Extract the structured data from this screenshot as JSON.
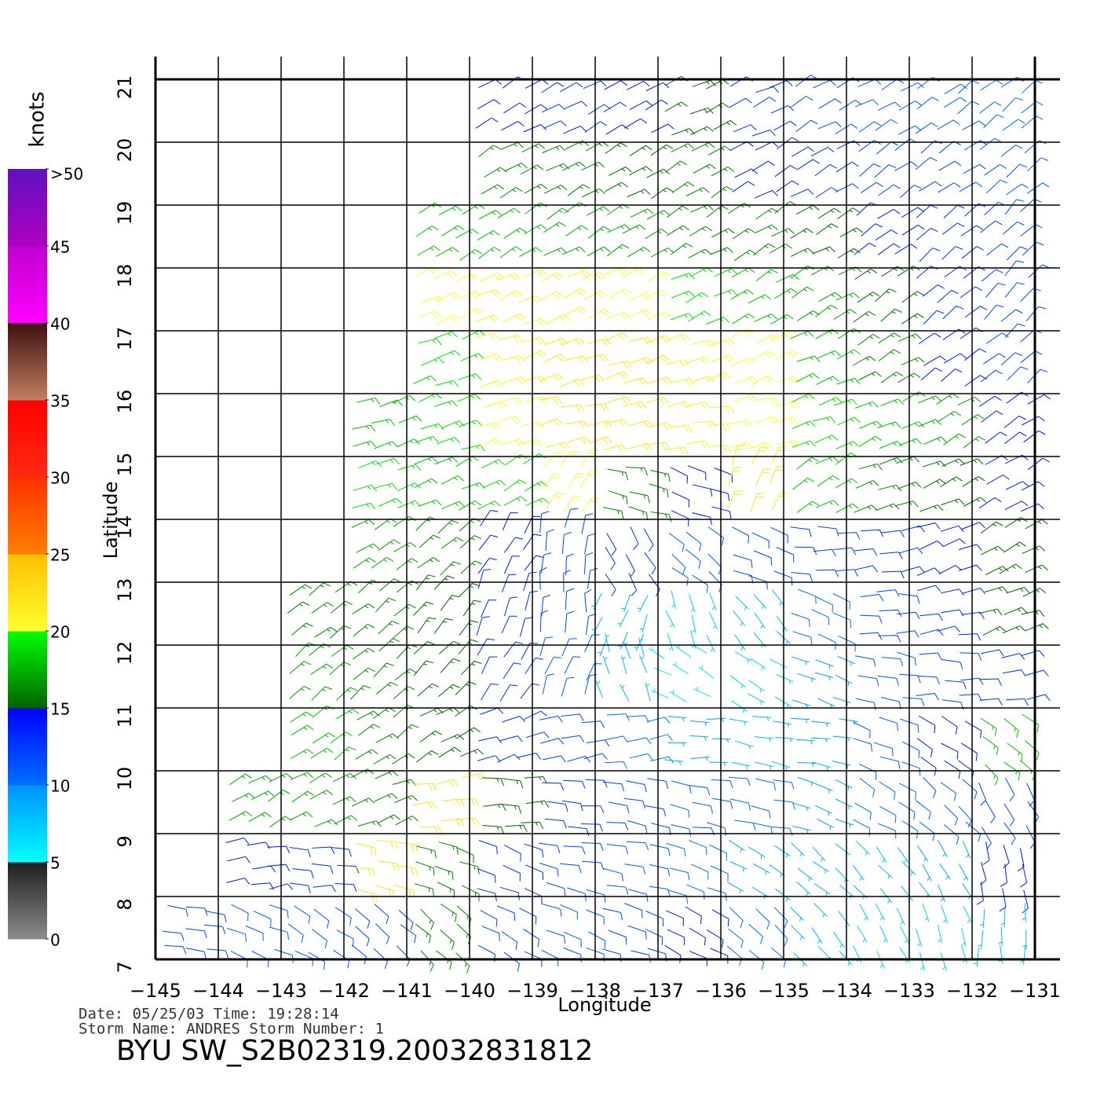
{
  "map": {
    "xlabel": "Longitude",
    "ylabel": "Latitude",
    "xlim": [
      -145,
      -131
    ],
    "ylim": [
      7,
      21
    ],
    "xticks": [
      {
        "value": -145,
        "label": "−145"
      },
      {
        "value": -144,
        "label": "−144"
      },
      {
        "value": -143,
        "label": "−143"
      },
      {
        "value": -142,
        "label": "−142"
      },
      {
        "value": -141,
        "label": "−141"
      },
      {
        "value": -140,
        "label": "−140"
      },
      {
        "value": -139,
        "label": "−139"
      },
      {
        "value": -138,
        "label": "−138"
      },
      {
        "value": -137,
        "label": "−137"
      },
      {
        "value": -136,
        "label": "−136"
      },
      {
        "value": -135,
        "label": "−135"
      },
      {
        "value": -134,
        "label": "−134"
      },
      {
        "value": -133,
        "label": "−133"
      },
      {
        "value": -132,
        "label": "−132"
      },
      {
        "value": -131,
        "label": "−131"
      }
    ],
    "yticks": [
      7,
      8,
      9,
      10,
      11,
      12,
      13,
      14,
      15,
      16,
      17,
      18,
      19,
      20,
      21
    ],
    "colorbar": {
      "title": "knots",
      "lim": [
        0,
        50
      ],
      "ticks": [
        0,
        5,
        10,
        15,
        20,
        25,
        30,
        35,
        40,
        45,
        {
          "value": 50,
          "label": ">50"
        }
      ],
      "segments": [
        {
          "from": 0,
          "to": 5,
          "colors": [
            "#8c8c8c",
            "#1e1e1e"
          ]
        },
        {
          "from": 5,
          "to": 10,
          "colors": [
            "#00ffff",
            "#0090ff"
          ]
        },
        {
          "from": 10,
          "to": 15,
          "colors": [
            "#0070ff",
            "#0000ff"
          ]
        },
        {
          "from": 15,
          "to": 20,
          "colors": [
            "#006400",
            "#00ff00"
          ]
        },
        {
          "from": 20,
          "to": 25,
          "colors": [
            "#ffff30",
            "#ffc000"
          ]
        },
        {
          "from": 25,
          "to": 30,
          "colors": [
            "#ff8000",
            "#ff3000"
          ]
        },
        {
          "from": 30,
          "to": 35,
          "colors": [
            "#ff2a10",
            "#ff0000"
          ]
        },
        {
          "from": 35,
          "to": 40,
          "colors": [
            "#c08060",
            "#401010"
          ]
        },
        {
          "from": 40,
          "to": 45,
          "colors": [
            "#ff00ff",
            "#c000d0"
          ]
        },
        {
          "from": 45,
          "to": 50,
          "colors": [
            "#b000c0",
            "#6010c0"
          ]
        }
      ]
    },
    "wind": {
      "cell_lats": [
        20,
        19,
        18,
        17,
        16,
        15,
        14,
        13,
        12,
        11,
        10,
        9,
        8,
        7
      ],
      "cell_lons": [
        -145,
        -144,
        -143,
        -142,
        -141,
        -140,
        -139,
        -138,
        -137,
        -136,
        -135,
        -134,
        -133,
        -132
      ],
      "speed": [
        [
          null,
          null,
          null,
          null,
          null,
          14,
          13,
          14,
          15,
          13,
          12,
          11,
          11,
          10
        ],
        [
          null,
          null,
          null,
          null,
          null,
          16,
          16,
          15,
          16,
          14,
          13,
          12,
          12,
          11
        ],
        [
          null,
          null,
          null,
          null,
          18,
          18,
          17,
          17,
          16,
          16,
          15,
          14,
          13,
          12
        ],
        [
          null,
          null,
          null,
          null,
          20,
          21,
          21,
          20,
          19,
          18,
          17,
          15,
          13,
          12
        ],
        [
          null,
          null,
          null,
          null,
          19,
          21,
          22,
          22,
          21,
          20,
          18,
          16,
          14,
          12
        ],
        [
          null,
          null,
          null,
          18,
          19,
          20,
          22,
          22,
          21,
          20,
          19,
          18,
          17,
          14
        ],
        [
          null,
          null,
          null,
          19,
          18,
          19,
          20,
          16,
          14,
          22,
          18,
          16,
          15,
          14
        ],
        [
          null,
          null,
          null,
          17,
          16,
          14,
          12,
          13,
          11,
          12,
          12,
          13,
          14,
          15
        ],
        [
          null,
          null,
          16,
          16,
          15,
          13,
          12,
          8,
          7,
          8,
          10,
          12,
          13,
          15
        ],
        [
          null,
          null,
          17,
          16,
          15,
          13,
          11,
          8,
          6,
          7,
          9,
          11,
          12,
          13
        ],
        [
          null,
          null,
          18,
          16,
          15,
          13,
          12,
          10,
          9,
          8,
          9,
          11,
          14,
          18
        ],
        [
          null,
          17,
          17,
          16,
          22,
          15,
          13,
          12,
          11,
          10,
          9,
          10,
          11,
          12
        ],
        [
          null,
          14,
          13,
          22,
          16,
          13,
          12,
          11,
          10,
          9,
          8,
          8,
          9,
          14
        ],
        [
          12,
          11,
          11,
          12,
          16,
          12,
          11,
          12,
          14,
          10,
          8,
          7,
          7,
          8
        ]
      ],
      "direction": [
        [
          null,
          null,
          null,
          null,
          null,
          60,
          60,
          60,
          65,
          65,
          60,
          60,
          55,
          50
        ],
        [
          null,
          null,
          null,
          null,
          null,
          60,
          60,
          60,
          60,
          60,
          60,
          55,
          55,
          50
        ],
        [
          null,
          null,
          null,
          null,
          60,
          60,
          60,
          60,
          60,
          60,
          60,
          55,
          50,
          45
        ],
        [
          null,
          null,
          null,
          null,
          65,
          65,
          65,
          65,
          65,
          60,
          60,
          55,
          50,
          45
        ],
        [
          null,
          null,
          null,
          null,
          70,
          70,
          70,
          70,
          70,
          65,
          65,
          60,
          55,
          50
        ],
        [
          null,
          null,
          null,
          70,
          70,
          70,
          75,
          80,
          80,
          75,
          70,
          65,
          60,
          55
        ],
        [
          null,
          null,
          null,
          70,
          65,
          60,
          30,
          100,
          110,
          20,
          60,
          70,
          65,
          60
        ],
        [
          null,
          null,
          null,
          60,
          50,
          30,
          10,
          150,
          130,
          110,
          90,
          80,
          70,
          60
        ],
        [
          null,
          null,
          50,
          50,
          40,
          20,
          0,
          200,
          160,
          140,
          110,
          90,
          80,
          70
        ],
        [
          null,
          null,
          50,
          50,
          45,
          30,
          20,
          340,
          300,
          120,
          110,
          100,
          90,
          80
        ],
        [
          null,
          null,
          55,
          55,
          60,
          70,
          80,
          80,
          90,
          100,
          100,
          110,
          120,
          130
        ],
        [
          null,
          60,
          60,
          70,
          80,
          90,
          95,
          100,
          100,
          100,
          110,
          120,
          130,
          150
        ],
        [
          null,
          80,
          90,
          100,
          110,
          110,
          100,
          100,
          110,
          120,
          130,
          140,
          150,
          170
        ],
        [
          100,
          110,
          120,
          130,
          130,
          120,
          110,
          110,
          120,
          130,
          140,
          150,
          160,
          180
        ]
      ]
    },
    "footer": {
      "date_line": "Date: 05/25/03   Time: 19:28:14",
      "storm_line": "Storm  Name: ANDRES   Storm  Number: 1",
      "title": "BYU  SW_S2B02319.20032831812"
    }
  }
}
